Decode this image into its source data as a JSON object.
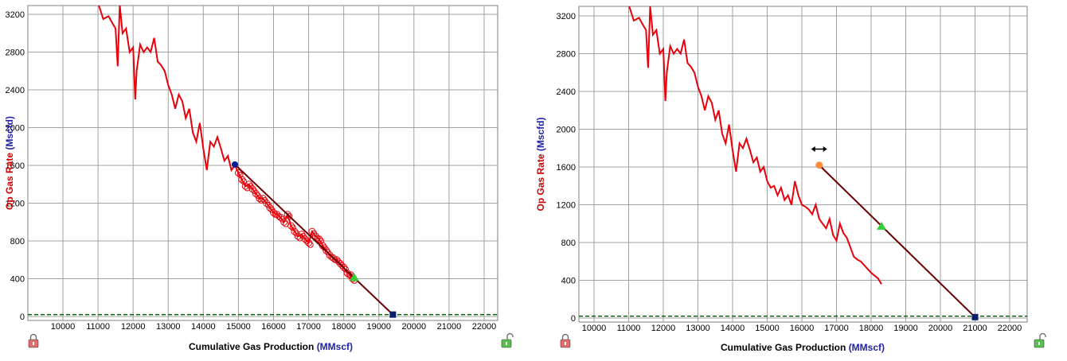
{
  "colors": {
    "data_series": "#e8000b",
    "forecast_line": "#6b0000",
    "baseline": "#006400",
    "ylabel": "#cc0000",
    "xlabel": "#000000",
    "units": "#1f1fa8",
    "grid": "#a0a0a0",
    "start_marker_left": "#0a1f8f",
    "start_marker_right": "#ff8c3a",
    "end_marker": "#0a1f6b",
    "mid_marker": "#33cc33"
  },
  "lock_icons": {
    "left": "lock-closed-icon",
    "right": "lock-open-icon"
  },
  "chart_data": [
    {
      "type": "line",
      "panel": "left",
      "xlabel": "Cumulative Gas Production",
      "xlabel_units": "(MMscf)",
      "ylabel": "Op Gas Rate",
      "ylabel_units": "(Mscfd)",
      "xlim": [
        9500,
        22500
      ],
      "ylim": [
        0,
        3300
      ],
      "x_ticks": [
        "10000",
        "11000",
        "12000",
        "13000",
        "14000",
        "15000",
        "16000",
        "17000",
        "18000",
        "19000",
        "20000",
        "21000",
        "22000"
      ],
      "y_ticks": [
        "0",
        "400",
        "800",
        "1200",
        "1600",
        "2000",
        "2400",
        "2800",
        "3200"
      ],
      "grid": true,
      "series": [
        {
          "role": "production",
          "x": [
            11000,
            11150,
            11300,
            11420,
            11500,
            11560,
            11620,
            11700,
            11800,
            11900,
            12000,
            12060,
            12100,
            12200,
            12300,
            12400,
            12500,
            12600,
            12700,
            12800,
            12900,
            13000,
            13100,
            13200,
            13300,
            13400,
            13500,
            13600,
            13700,
            13800,
            13900,
            14000,
            14100,
            14200,
            14300,
            14400,
            14500,
            14600,
            14700,
            14800,
            14900,
            15000,
            15100,
            15200,
            15300,
            15400,
            15500,
            15600,
            15700,
            15800,
            15900,
            16000,
            16100,
            16200,
            16300,
            16400,
            16500,
            16600,
            16700,
            16800,
            16900,
            17000,
            17100,
            17200,
            17300,
            17400,
            17500,
            17600,
            17700,
            17800,
            17900,
            18000,
            18100,
            18200,
            18250
          ],
          "y": [
            3320,
            3150,
            3180,
            3100,
            3050,
            2650,
            3300,
            3000,
            3050,
            2800,
            2850,
            2300,
            2600,
            2880,
            2800,
            2850,
            2800,
            2950,
            2700,
            2660,
            2600,
            2450,
            2350,
            2200,
            2350,
            2280,
            2100,
            2200,
            1950,
            1850,
            2050,
            1780,
            1550,
            1850,
            1800,
            1900,
            1780,
            1650,
            1700,
            1550,
            1600,
            1520,
            1450,
            1380,
            1400,
            1350,
            1300,
            1250,
            1250,
            1200,
            1150,
            1100,
            1080,
            1050,
            1000,
            1080,
            960,
            900,
            850,
            870,
            820,
            780,
            900,
            850,
            820,
            750,
            700,
            650,
            620,
            600,
            560,
            520,
            460,
            440,
            400
          ]
        },
        {
          "role": "forecast",
          "x": [
            14900,
            18300,
            19400
          ],
          "y": [
            1610,
            410,
            20
          ]
        }
      ],
      "markers": [
        {
          "name": "start",
          "shape": "circle",
          "x": 14900,
          "y": 1610
        },
        {
          "name": "mid",
          "shape": "triangle",
          "x": 18300,
          "y": 410
        },
        {
          "name": "end",
          "shape": "square",
          "x": 19400,
          "y": 20
        }
      ],
      "hollow_points_range": [
        15000,
        18250
      ],
      "baseline_y": 20
    },
    {
      "type": "line",
      "panel": "right",
      "xlabel": "Cumulative Gas Production",
      "xlabel_units": "(MMscf)",
      "ylabel": "Op Gas Rate",
      "ylabel_units": "(Mscfd)",
      "xlim": [
        9500,
        22500
      ],
      "ylim": [
        0,
        3300
      ],
      "x_ticks": [
        "10000",
        "11000",
        "12000",
        "13000",
        "14000",
        "15000",
        "16000",
        "17000",
        "18000",
        "19000",
        "20000",
        "21000",
        "22000"
      ],
      "y_ticks": [
        "0",
        "400",
        "800",
        "1200",
        "1600",
        "2000",
        "2400",
        "2800",
        "3200"
      ],
      "grid": true,
      "series": [
        {
          "role": "production",
          "x": [
            11000,
            11150,
            11300,
            11420,
            11500,
            11560,
            11620,
            11700,
            11800,
            11900,
            12000,
            12060,
            12100,
            12200,
            12300,
            12400,
            12500,
            12600,
            12700,
            12800,
            12900,
            13000,
            13100,
            13200,
            13300,
            13400,
            13500,
            13600,
            13700,
            13800,
            13900,
            14000,
            14100,
            14200,
            14300,
            14400,
            14500,
            14600,
            14700,
            14800,
            14900,
            15000,
            15100,
            15200,
            15300,
            15400,
            15500,
            15600,
            15700,
            15800,
            15900,
            16000,
            16100,
            16200,
            16300,
            16400,
            16500,
            16600,
            16700,
            16800,
            16900,
            17000,
            17100,
            17200,
            17300,
            17400,
            17500,
            17600,
            17700,
            17800,
            17900,
            18000,
            18100,
            18200,
            18300
          ],
          "y": [
            3320,
            3150,
            3180,
            3100,
            3050,
            2650,
            3300,
            3000,
            3050,
            2800,
            2850,
            2300,
            2600,
            2880,
            2800,
            2850,
            2800,
            2950,
            2700,
            2660,
            2600,
            2450,
            2350,
            2200,
            2350,
            2280,
            2100,
            2200,
            1950,
            1850,
            2050,
            1780,
            1550,
            1850,
            1800,
            1900,
            1780,
            1650,
            1700,
            1550,
            1600,
            1450,
            1380,
            1400,
            1300,
            1380,
            1250,
            1300,
            1200,
            1450,
            1300,
            1200,
            1180,
            1150,
            1100,
            1200,
            1050,
            1000,
            950,
            1050,
            880,
            820,
            1000,
            900,
            850,
            750,
            650,
            620,
            600,
            560,
            520,
            480,
            450,
            420,
            360
          ]
        },
        {
          "role": "forecast",
          "x": [
            16500,
            18300,
            21000
          ],
          "y": [
            1620,
            970,
            10
          ]
        }
      ],
      "markers": [
        {
          "name": "start",
          "shape": "diamond",
          "x": 16500,
          "y": 1620
        },
        {
          "name": "mid",
          "shape": "triangle",
          "x": 18300,
          "y": 970
        },
        {
          "name": "end",
          "shape": "square",
          "x": 21000,
          "y": 10
        }
      ],
      "drag_handle": {
        "x": 16500,
        "y": 1790
      },
      "baseline_y": 20
    }
  ]
}
